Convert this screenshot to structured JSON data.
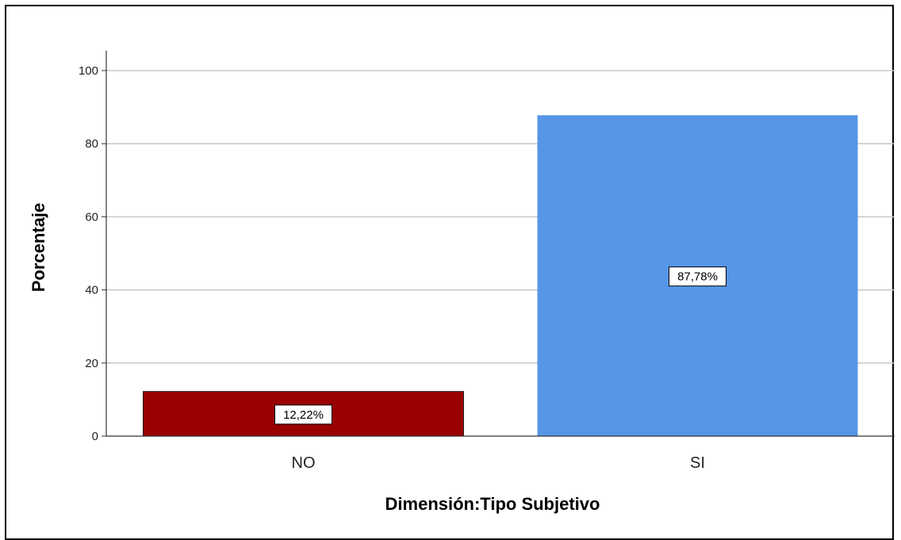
{
  "chart_data": {
    "type": "bar",
    "categories": [
      "NO",
      "SI"
    ],
    "values": [
      12.22,
      87.78
    ],
    "data_labels": [
      "12,22%",
      "87,78%"
    ],
    "colors": [
      "#990000",
      "#5596E6"
    ],
    "title": "",
    "xlabel": "Dimensión:Tipo Subjetivo",
    "ylabel": "Porcentaje",
    "ylim": [
      0,
      100
    ],
    "yticks": [
      0,
      20,
      40,
      60,
      80,
      100
    ],
    "ytick_labels": [
      "0",
      "20",
      "40",
      "60",
      "80",
      "100"
    ],
    "grid": true,
    "legend": "none"
  }
}
